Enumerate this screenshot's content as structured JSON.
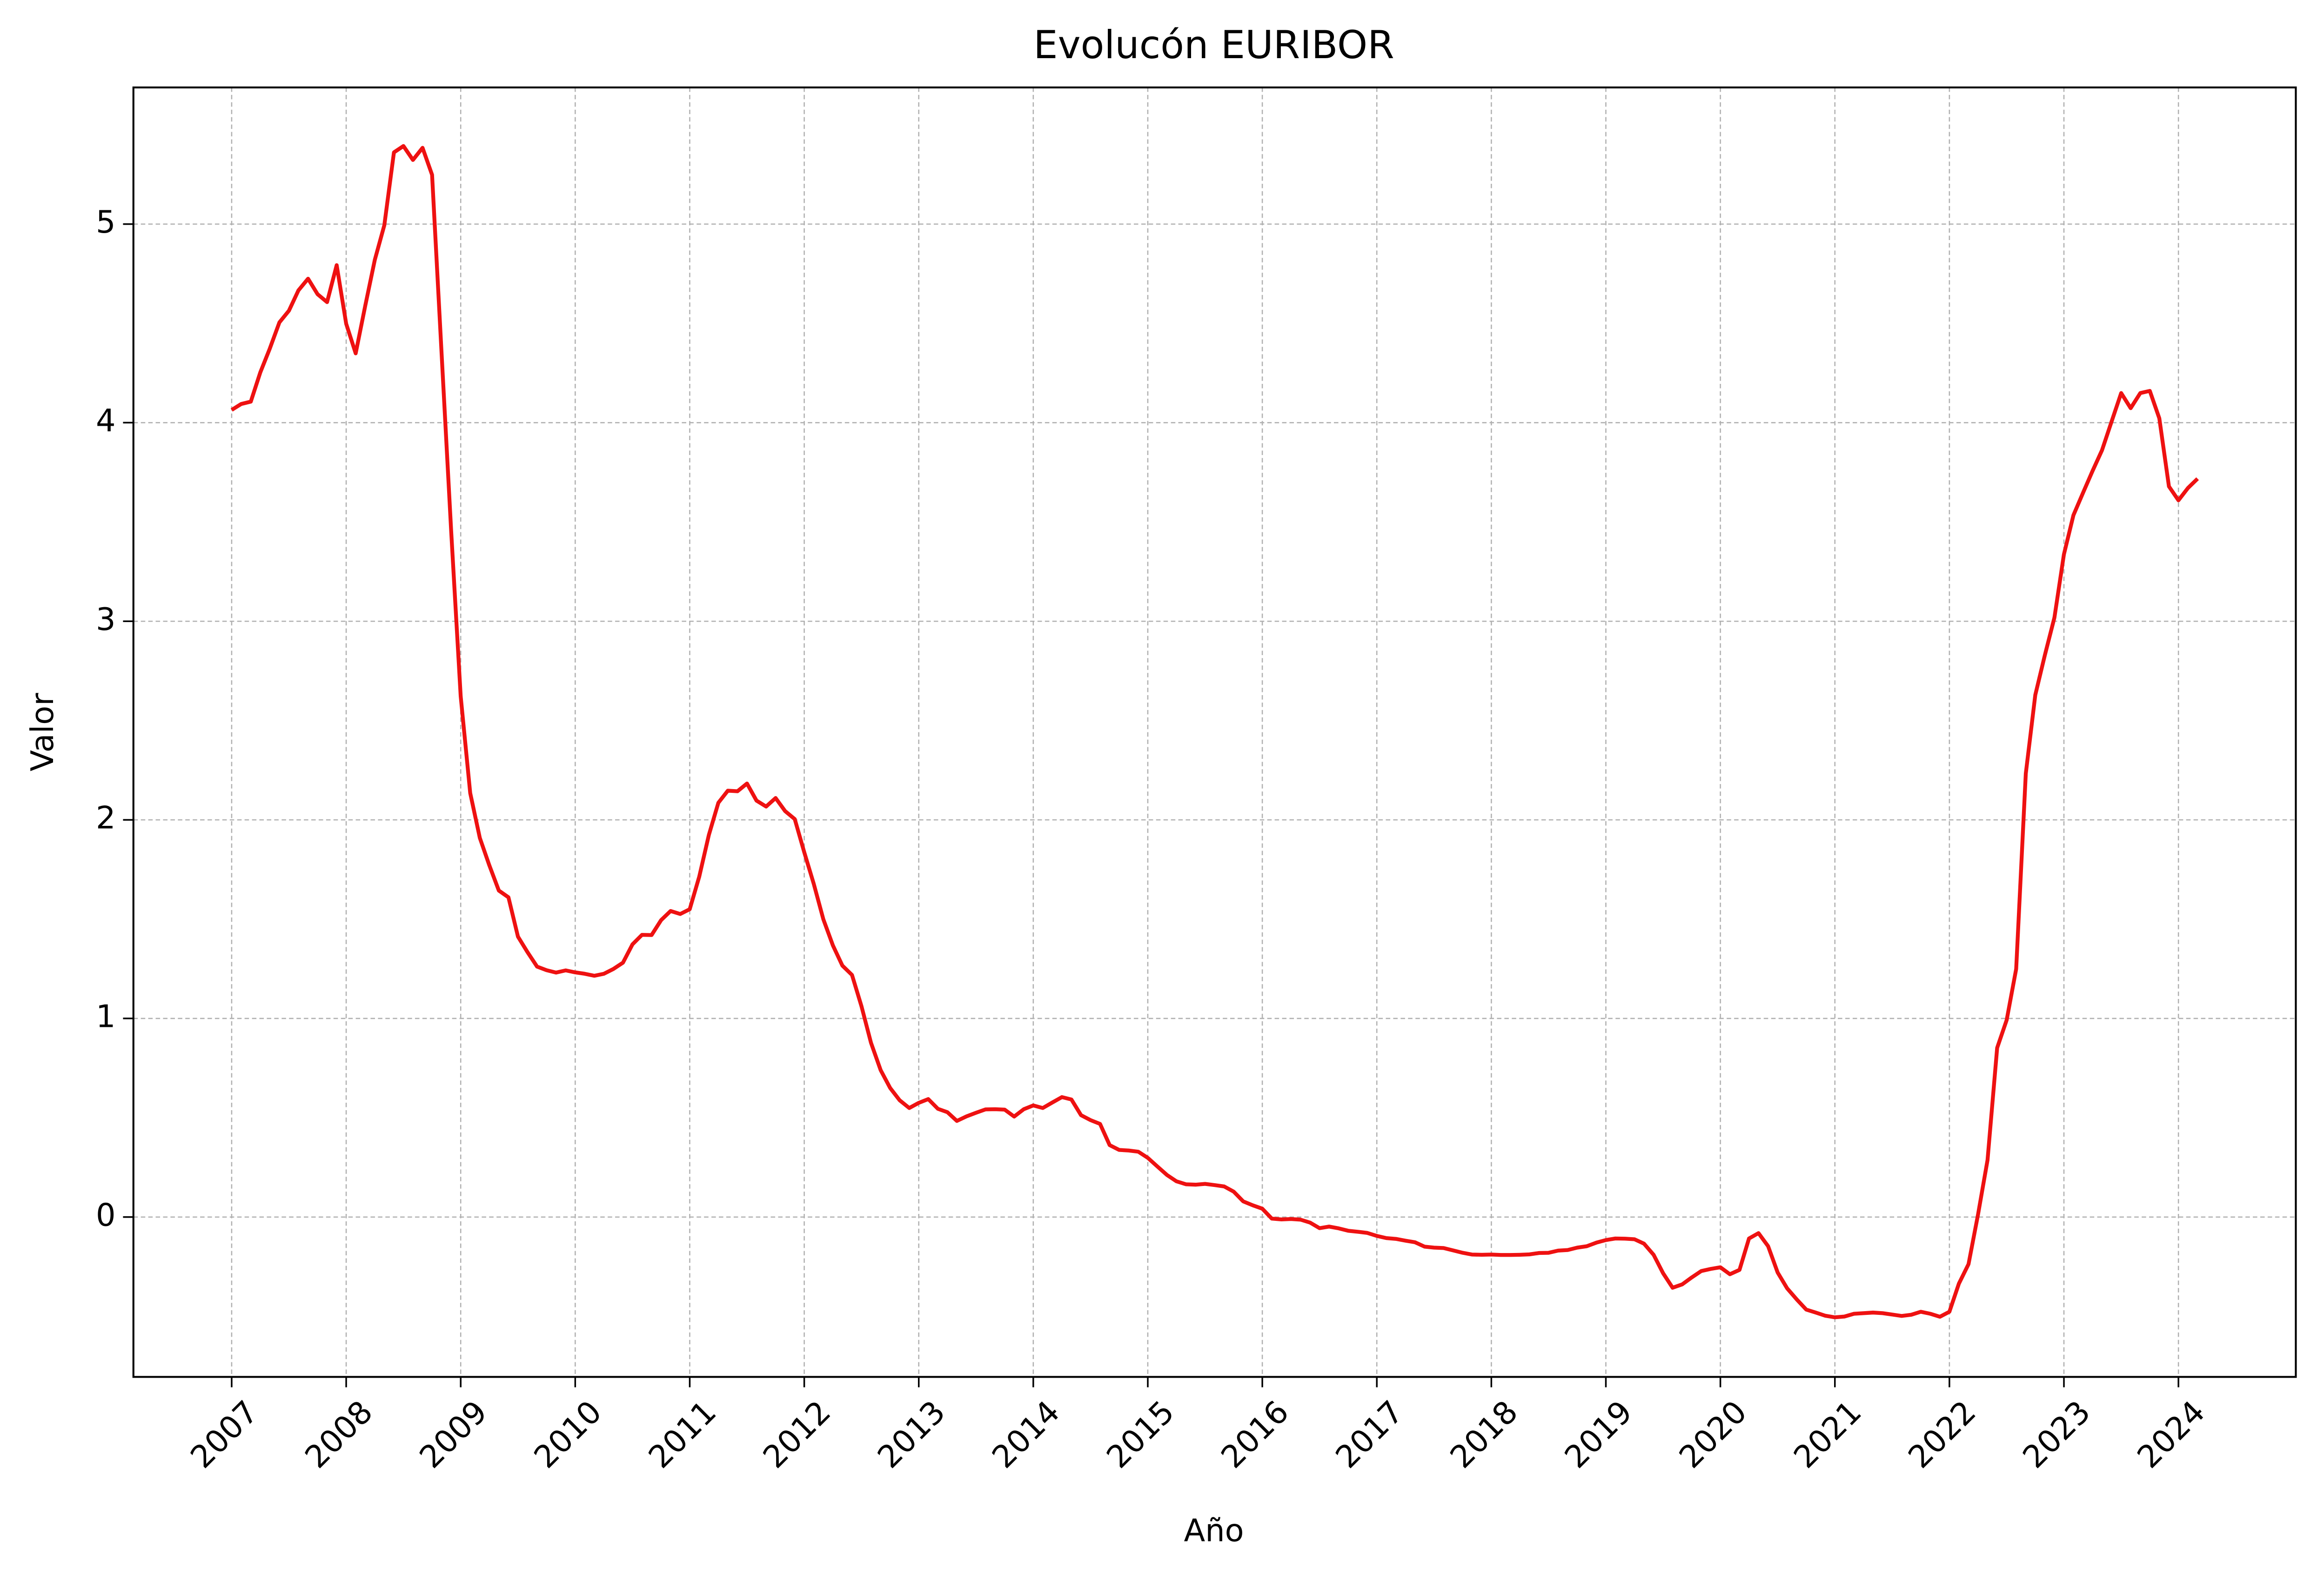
{
  "chart_data": {
    "type": "line",
    "title": "Evolucón EURIBOR",
    "x_label": "Año",
    "y_label": "Valor",
    "color": "#ee1111",
    "grid": true,
    "xlim": [
      2006.142,
      2025.025
    ],
    "ylim": [
      -0.805,
      5.688
    ],
    "xticks": [
      2007,
      2008,
      2009,
      2010,
      2011,
      2012,
      2013,
      2014,
      2015,
      2016,
      2017,
      2018,
      2019,
      2020,
      2021,
      2022,
      2023,
      2024
    ],
    "yticks": [
      0,
      1,
      2,
      3,
      4,
      5
    ],
    "x": [
      2007,
      2007.083,
      2007.167,
      2007.25,
      2007.333,
      2007.417,
      2007.5,
      2007.583,
      2007.667,
      2007.75,
      2007.833,
      2007.917,
      2008,
      2008.083,
      2008.167,
      2008.25,
      2008.333,
      2008.417,
      2008.5,
      2008.583,
      2008.667,
      2008.75,
      2008.833,
      2008.917,
      2009,
      2009.083,
      2009.167,
      2009.25,
      2009.333,
      2009.417,
      2009.5,
      2009.583,
      2009.667,
      2009.75,
      2009.833,
      2009.917,
      2010,
      2010.083,
      2010.167,
      2010.25,
      2010.333,
      2010.417,
      2010.5,
      2010.583,
      2010.667,
      2010.75,
      2010.833,
      2010.917,
      2011,
      2011.083,
      2011.167,
      2011.25,
      2011.333,
      2011.417,
      2011.5,
      2011.583,
      2011.667,
      2011.75,
      2011.833,
      2011.917,
      2012,
      2012.083,
      2012.167,
      2012.25,
      2012.333,
      2012.417,
      2012.5,
      2012.583,
      2012.667,
      2012.75,
      2012.833,
      2012.917,
      2013,
      2013.083,
      2013.167,
      2013.25,
      2013.333,
      2013.417,
      2013.5,
      2013.583,
      2013.667,
      2013.75,
      2013.833,
      2013.917,
      2014,
      2014.083,
      2014.167,
      2014.25,
      2014.333,
      2014.417,
      2014.5,
      2014.583,
      2014.667,
      2014.75,
      2014.833,
      2014.917,
      2015,
      2015.083,
      2015.167,
      2015.25,
      2015.333,
      2015.417,
      2015.5,
      2015.583,
      2015.667,
      2015.75,
      2015.833,
      2015.917,
      2016,
      2016.083,
      2016.167,
      2016.25,
      2016.333,
      2016.417,
      2016.5,
      2016.583,
      2016.667,
      2016.75,
      2016.833,
      2016.917,
      2017,
      2017.083,
      2017.167,
      2017.25,
      2017.333,
      2017.417,
      2017.5,
      2017.583,
      2017.667,
      2017.75,
      2017.833,
      2017.917,
      2018,
      2018.083,
      2018.167,
      2018.25,
      2018.333,
      2018.417,
      2018.5,
      2018.583,
      2018.667,
      2018.75,
      2018.833,
      2018.917,
      2019,
      2019.083,
      2019.167,
      2019.25,
      2019.333,
      2019.417,
      2019.5,
      2019.583,
      2019.667,
      2019.75,
      2019.833,
      2019.917,
      2020,
      2020.083,
      2020.167,
      2020.25,
      2020.333,
      2020.417,
      2020.5,
      2020.583,
      2020.667,
      2020.75,
      2020.833,
      2020.917,
      2021,
      2021.083,
      2021.167,
      2021.25,
      2021.333,
      2021.417,
      2021.5,
      2021.583,
      2021.667,
      2021.75,
      2021.833,
      2021.917,
      2022,
      2022.083,
      2022.167,
      2022.25,
      2022.333,
      2022.417,
      2022.5,
      2022.583,
      2022.667,
      2022.75,
      2022.833,
      2022.917,
      2023,
      2023.083,
      2023.167,
      2023.25,
      2023.333,
      2023.417,
      2023.5,
      2023.583,
      2023.667,
      2023.75,
      2023.833,
      2023.917,
      2024,
      2024.083,
      2024.167
    ],
    "values": [
      4.064,
      4.094,
      4.106,
      4.253,
      4.373,
      4.505,
      4.564,
      4.666,
      4.725,
      4.647,
      4.607,
      4.793,
      4.498,
      4.349,
      4.59,
      4.82,
      4.994,
      5.361,
      5.393,
      5.323,
      5.384,
      5.248,
      4.35,
      3.452,
      2.622,
      2.135,
      1.909,
      1.771,
      1.644,
      1.61,
      1.412,
      1.334,
      1.261,
      1.243,
      1.231,
      1.242,
      1.232,
      1.225,
      1.215,
      1.225,
      1.249,
      1.281,
      1.373,
      1.421,
      1.42,
      1.495,
      1.541,
      1.526,
      1.55,
      1.714,
      1.924,
      2.086,
      2.147,
      2.144,
      2.183,
      2.097,
      2.067,
      2.11,
      2.044,
      2.004,
      1.837,
      1.678,
      1.499,
      1.368,
      1.266,
      1.219,
      1.061,
      0.877,
      0.74,
      0.65,
      0.588,
      0.549,
      0.575,
      0.594,
      0.545,
      0.528,
      0.484,
      0.507,
      0.525,
      0.542,
      0.543,
      0.541,
      0.506,
      0.543,
      0.562,
      0.549,
      0.577,
      0.604,
      0.592,
      0.513,
      0.488,
      0.469,
      0.362,
      0.338,
      0.335,
      0.329,
      0.298,
      0.255,
      0.212,
      0.18,
      0.165,
      0.163,
      0.167,
      0.161,
      0.154,
      0.128,
      0.079,
      0.059,
      0.042,
      -0.008,
      -0.012,
      -0.01,
      -0.013,
      -0.028,
      -0.056,
      -0.048,
      -0.057,
      -0.069,
      -0.074,
      -0.08,
      -0.095,
      -0.106,
      -0.11,
      -0.119,
      -0.127,
      -0.149,
      -0.154,
      -0.156,
      -0.168,
      -0.18,
      -0.189,
      -0.19,
      -0.189,
      -0.191,
      -0.191,
      -0.19,
      -0.188,
      -0.181,
      -0.18,
      -0.169,
      -0.166,
      -0.154,
      -0.147,
      -0.129,
      -0.116,
      -0.108,
      -0.109,
      -0.112,
      -0.134,
      -0.19,
      -0.283,
      -0.356,
      -0.339,
      -0.304,
      -0.272,
      -0.261,
      -0.253,
      -0.288,
      -0.266,
      -0.108,
      -0.081,
      -0.147,
      -0.279,
      -0.359,
      -0.415,
      -0.466,
      -0.481,
      -0.497,
      -0.505,
      -0.501,
      -0.487,
      -0.484,
      -0.481,
      -0.484,
      -0.491,
      -0.498,
      -0.492,
      -0.477,
      -0.487,
      -0.502,
      -0.477,
      -0.335,
      -0.237,
      0.013,
      0.287,
      0.852,
      0.992,
      1.249,
      2.233,
      2.629,
      2.828,
      3.018,
      3.337,
      3.534,
      3.647,
      3.757,
      3.862,
      4.007,
      4.149,
      4.073,
      4.149,
      4.16,
      4.022,
      3.679,
      3.609,
      3.671,
      3.718
    ]
  }
}
